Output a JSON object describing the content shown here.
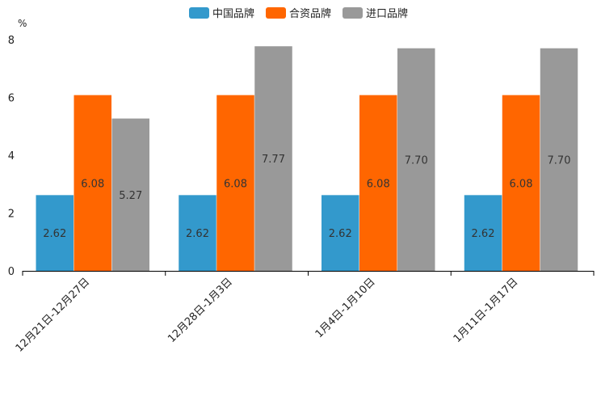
{
  "chart_data": {
    "type": "bar",
    "title": "",
    "ylabel": "%",
    "xlabel": "",
    "ylim": [
      0,
      8
    ],
    "yticks": [
      0,
      2,
      4,
      6,
      8
    ],
    "categories": [
      "12月21日-12月27日",
      "12月28日-1月3日",
      "1月4日-1月10日",
      "1月11日-1月17日"
    ],
    "series": [
      {
        "name": "中国品牌",
        "color": "#3399cc",
        "values": [
          2.62,
          2.62,
          2.62,
          2.62
        ]
      },
      {
        "name": "合资品牌",
        "color": "#ff6600",
        "values": [
          6.08,
          6.08,
          6.08,
          6.08
        ]
      },
      {
        "name": "进口品牌",
        "color": "#999999",
        "values": [
          5.27,
          7.77,
          7.7,
          7.7
        ]
      }
    ],
    "legend_position": "top-center",
    "grid": false
  }
}
